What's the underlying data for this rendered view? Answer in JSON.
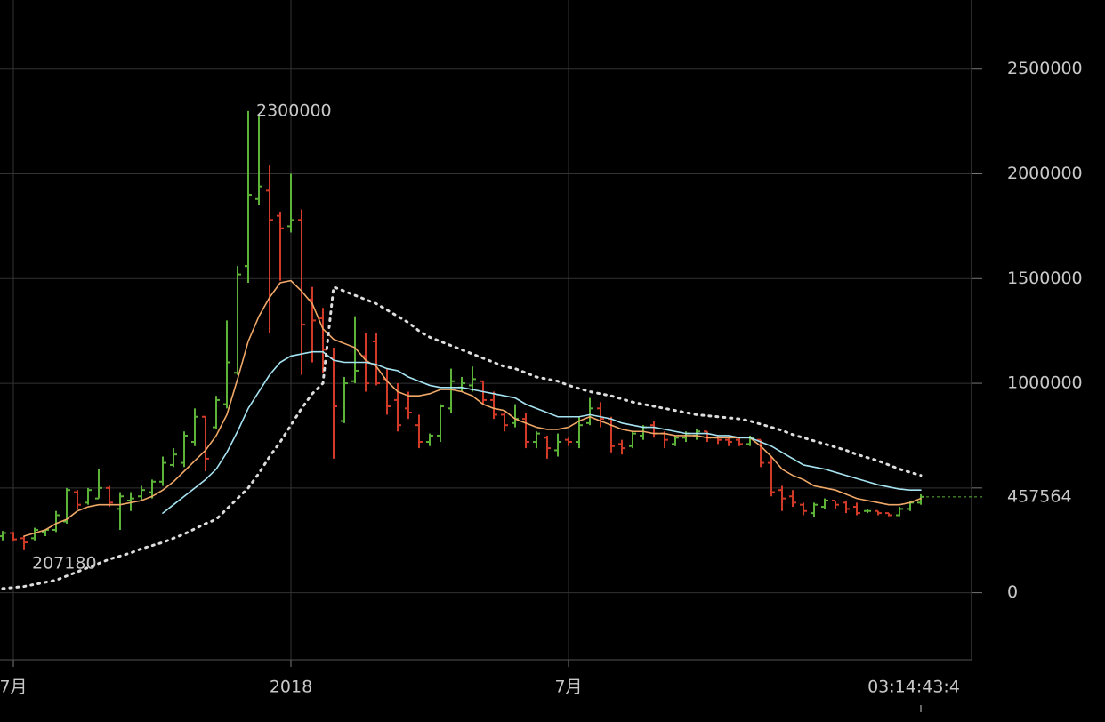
{
  "chart_data": {
    "type": "ohlc",
    "categories": [
      null,
      "7月",
      null,
      null,
      null,
      null,
      null,
      null,
      null,
      null,
      null,
      null,
      null,
      null,
      null,
      null,
      null,
      null,
      null,
      null,
      null,
      null,
      null,
      null,
      null,
      null,
      null,
      "2018",
      null,
      null,
      null,
      null,
      null,
      null,
      null,
      null,
      null,
      null,
      null,
      null,
      null,
      null,
      null,
      null,
      null,
      null,
      null,
      null,
      null,
      null,
      null,
      null,
      null,
      "7月",
      null,
      null,
      null,
      null,
      null,
      null,
      null,
      null,
      null,
      null,
      null,
      null,
      null,
      null,
      null,
      null,
      null,
      null,
      null,
      null,
      null,
      null,
      null,
      null,
      null,
      null,
      null,
      null,
      null,
      null,
      null,
      null,
      null
    ],
    "open": [
      270000,
      285000,
      260000,
      260000,
      290000,
      300000,
      340000,
      480000,
      430000,
      450000,
      500000,
      400000,
      440000,
      460000,
      480000,
      530000,
      610000,
      620000,
      720000,
      840000,
      790000,
      900000,
      1050000,
      1560000,
      1880000,
      1920000,
      1800000,
      1750000,
      1780000,
      1400000,
      1310000,
      1120000,
      820000,
      1010000,
      1130000,
      1200000,
      1020000,
      920000,
      880000,
      800000,
      720000,
      750000,
      880000,
      980000,
      990000,
      1010000,
      920000,
      850000,
      810000,
      830000,
      720000,
      740000,
      680000,
      730000,
      720000,
      810000,
      880000,
      830000,
      710000,
      700000,
      750000,
      800000,
      760000,
      710000,
      740000,
      750000,
      770000,
      740000,
      730000,
      730000,
      710000,
      730000,
      620000,
      490000,
      460000,
      420000,
      380000,
      410000,
      440000,
      430000,
      410000,
      390000,
      390000,
      380000,
      370000,
      400000,
      430000
    ],
    "high": [
      295000,
      290000,
      270000,
      310000,
      300000,
      390000,
      500000,
      490000,
      500000,
      590000,
      510000,
      480000,
      480000,
      510000,
      540000,
      650000,
      690000,
      770000,
      880000,
      840000,
      940000,
      1300000,
      1560000,
      2300000,
      2280000,
      2040000,
      1820000,
      2000000,
      1830000,
      1460000,
      1360000,
      1170000,
      1030000,
      1320000,
      1240000,
      1240000,
      1070000,
      1000000,
      960000,
      850000,
      760000,
      900000,
      1070000,
      1030000,
      1080000,
      1010000,
      960000,
      860000,
      900000,
      860000,
      770000,
      750000,
      760000,
      740000,
      840000,
      930000,
      910000,
      840000,
      730000,
      770000,
      800000,
      820000,
      770000,
      750000,
      770000,
      780000,
      770000,
      750000,
      740000,
      740000,
      750000,
      730000,
      650000,
      510000,
      490000,
      430000,
      430000,
      450000,
      440000,
      440000,
      430000,
      400000,
      390000,
      380000,
      410000,
      440000,
      470000
    ],
    "low": [
      250000,
      245000,
      207180,
      250000,
      270000,
      290000,
      330000,
      400000,
      420000,
      450000,
      410000,
      300000,
      390000,
      440000,
      450000,
      510000,
      600000,
      600000,
      700000,
      580000,
      780000,
      880000,
      1040000,
      1480000,
      1850000,
      1240000,
      1490000,
      1720000,
      1040000,
      1100000,
      1050000,
      640000,
      810000,
      1000000,
      960000,
      990000,
      850000,
      770000,
      830000,
      690000,
      700000,
      720000,
      860000,
      960000,
      960000,
      900000,
      830000,
      770000,
      790000,
      690000,
      690000,
      640000,
      650000,
      700000,
      690000,
      800000,
      790000,
      670000,
      660000,
      690000,
      730000,
      740000,
      690000,
      700000,
      720000,
      730000,
      720000,
      710000,
      700000,
      700000,
      700000,
      600000,
      460000,
      390000,
      410000,
      370000,
      360000,
      400000,
      400000,
      380000,
      370000,
      380000,
      370000,
      365000,
      365000,
      390000,
      420000
    ],
    "close": [
      285000,
      255000,
      240000,
      300000,
      300000,
      370000,
      490000,
      420000,
      490000,
      500000,
      430000,
      460000,
      450000,
      490000,
      530000,
      620000,
      660000,
      750000,
      840000,
      640000,
      920000,
      1100000,
      1520000,
      1900000,
      1940000,
      1780000,
      1740000,
      1780000,
      1280000,
      1300000,
      1160000,
      890000,
      1000000,
      1060000,
      1000000,
      1000000,
      890000,
      800000,
      860000,
      720000,
      750000,
      890000,
      1010000,
      1000000,
      1020000,
      920000,
      850000,
      800000,
      830000,
      720000,
      760000,
      690000,
      720000,
      720000,
      800000,
      880000,
      830000,
      700000,
      690000,
      760000,
      790000,
      760000,
      730000,
      740000,
      760000,
      770000,
      740000,
      730000,
      720000,
      710000,
      740000,
      620000,
      480000,
      450000,
      430000,
      390000,
      420000,
      440000,
      420000,
      400000,
      380000,
      390000,
      380000,
      370000,
      400000,
      430000,
      457564
    ],
    "up_color": "#5cb338",
    "down_color": "#d23a28",
    "lines": [
      {
        "color": "#f0a868",
        "style": "solid",
        "values": [
          null,
          null,
          270000,
          285000,
          300000,
          330000,
          350000,
          390000,
          410000,
          420000,
          420000,
          420000,
          430000,
          440000,
          460000,
          490000,
          530000,
          580000,
          630000,
          680000,
          750000,
          850000,
          1020000,
          1200000,
          1320000,
          1410000,
          1480000,
          1490000,
          1440000,
          1380000,
          1260000,
          1210000,
          1190000,
          1170000,
          1110000,
          1080000,
          1010000,
          960000,
          940000,
          940000,
          950000,
          970000,
          970000,
          960000,
          940000,
          900000,
          880000,
          870000,
          830000,
          810000,
          790000,
          780000,
          780000,
          790000,
          820000,
          840000,
          820000,
          800000,
          780000,
          770000,
          770000,
          760000,
          760000,
          750000,
          750000,
          750000,
          740000,
          740000,
          740000,
          740000,
          740000,
          700000,
          650000,
          590000,
          560000,
          540000,
          510000,
          500000,
          490000,
          470000,
          450000,
          440000,
          430000,
          420000,
          420000,
          430000,
          450000
        ]
      },
      {
        "color": "#a6e3f2",
        "style": "solid",
        "values": [
          null,
          null,
          null,
          null,
          null,
          null,
          null,
          null,
          null,
          null,
          null,
          null,
          null,
          null,
          null,
          380000,
          420000,
          460000,
          500000,
          540000,
          590000,
          670000,
          770000,
          880000,
          960000,
          1040000,
          1100000,
          1130000,
          1140000,
          1150000,
          1150000,
          1110000,
          1100000,
          1100000,
          1100000,
          1090000,
          1070000,
          1060000,
          1030000,
          1010000,
          990000,
          980000,
          980000,
          980000,
          970000,
          960000,
          950000,
          940000,
          930000,
          900000,
          880000,
          860000,
          840000,
          840000,
          840000,
          850000,
          840000,
          830000,
          810000,
          800000,
          790000,
          790000,
          780000,
          770000,
          760000,
          760000,
          760000,
          750000,
          750000,
          740000,
          740000,
          720000,
          700000,
          670000,
          640000,
          610000,
          600000,
          590000,
          575000,
          560000,
          545000,
          530000,
          515000,
          505000,
          495000,
          490000,
          490000
        ]
      },
      {
        "color": "#dddddd",
        "style": "dotted",
        "values": [
          20000,
          25000,
          30000,
          40000,
          50000,
          60000,
          80000,
          100000,
          120000,
          140000,
          160000,
          175000,
          190000,
          210000,
          225000,
          240000,
          260000,
          280000,
          305000,
          330000,
          350000,
          400000,
          450000,
          500000,
          570000,
          650000,
          720000,
          800000,
          880000,
          950000,
          1000000,
          1460000,
          1440000,
          1420000,
          1400000,
          1380000,
          1350000,
          1320000,
          1290000,
          1250000,
          1220000,
          1200000,
          1180000,
          1160000,
          1140000,
          1120000,
          1100000,
          1080000,
          1070000,
          1050000,
          1030000,
          1020000,
          1010000,
          990000,
          975000,
          960000,
          950000,
          940000,
          925000,
          910000,
          900000,
          890000,
          880000,
          870000,
          860000,
          850000,
          845000,
          840000,
          835000,
          830000,
          820000,
          805000,
          790000,
          775000,
          755000,
          740000,
          725000,
          710000,
          695000,
          680000,
          660000,
          645000,
          630000,
          610000,
          590000,
          575000,
          560000
        ]
      }
    ],
    "ylim": [
      -320000,
      2830000
    ],
    "yticks": [
      0,
      500000,
      1000000,
      1500000,
      2000000,
      2500000
    ],
    "grid": true,
    "countdown": "03:14:43:4"
  }
}
